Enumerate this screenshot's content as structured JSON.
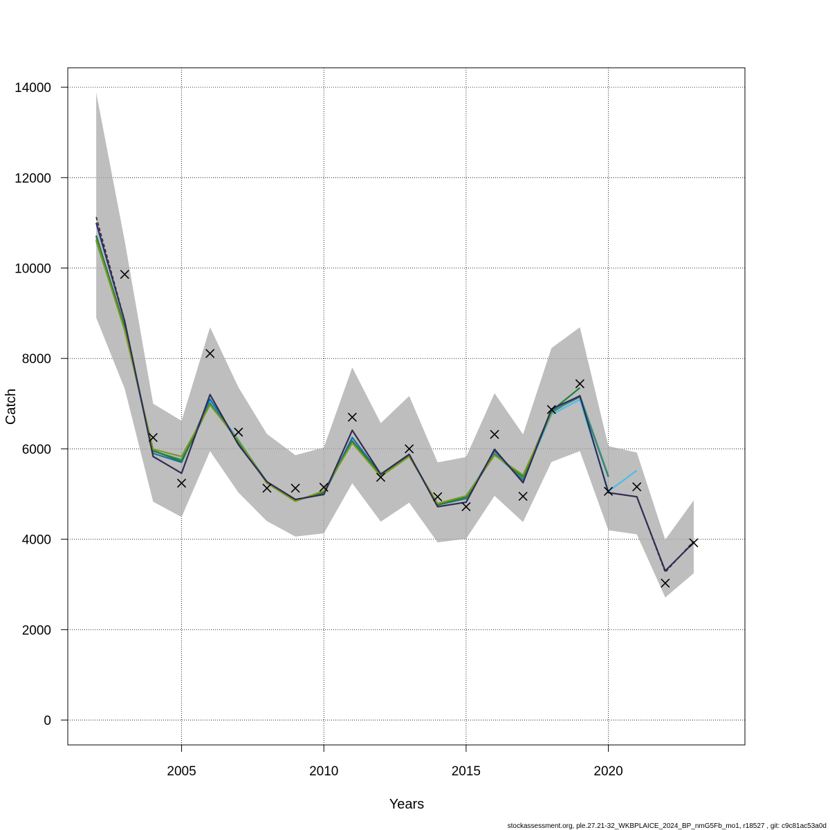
{
  "chart_data": {
    "type": "line",
    "xlabel": "Years",
    "ylabel": "Catch",
    "xlim": [
      2001.0,
      2024.8
    ],
    "ylim": [
      -550,
      14430
    ],
    "x_ticks": [
      2005,
      2010,
      2015,
      2020
    ],
    "y_ticks": [
      0,
      2000,
      4000,
      6000,
      8000,
      10000,
      12000,
      14000
    ],
    "grid": true,
    "confidence_band": {
      "color": "#bebebe",
      "x": [
        2002,
        2003,
        2004,
        2005,
        2006,
        2007,
        2008,
        2009,
        2010,
        2011,
        2012,
        2013,
        2014,
        2015,
        2016,
        2017,
        2018,
        2019,
        2020,
        2021,
        2022,
        2023
      ],
      "upper": [
        13880,
        10600,
        7000,
        6620,
        8690,
        7360,
        6330,
        5860,
        6030,
        7800,
        6570,
        7170,
        5700,
        5820,
        7230,
        6320,
        8230,
        8690,
        6060,
        5920,
        3990,
        4860
      ],
      "lower": [
        8900,
        7330,
        4830,
        4490,
        5950,
        5030,
        4400,
        4060,
        4130,
        5240,
        4390,
        4810,
        3930,
        4010,
        4960,
        4380,
        5710,
        5950,
        4200,
        4110,
        2710,
        3250
      ]
    },
    "observed": {
      "marker": "x",
      "color": "#000000",
      "x": [
        2003,
        2004,
        2005,
        2006,
        2007,
        2008,
        2009,
        2010,
        2011,
        2012,
        2013,
        2014,
        2015,
        2016,
        2017,
        2018,
        2019,
        2020,
        2021,
        2022,
        2023
      ],
      "values": [
        9860,
        6250,
        5240,
        8110,
        6370,
        5130,
        5130,
        5150,
        6700,
        5370,
        6000,
        4940,
        4720,
        6320,
        4950,
        6870,
        7440,
        5060,
        5160,
        3030,
        3920
      ]
    },
    "series": [
      {
        "color": "#48bde8",
        "x": [
          2002,
          2003,
          2004,
          2005,
          2006,
          2007,
          2008,
          2009,
          2010,
          2011,
          2012,
          2013,
          2014,
          2015,
          2016,
          2017,
          2018,
          2019,
          2020,
          2021
        ],
        "values": [
          10650,
          8650,
          5960,
          5720,
          7050,
          6200,
          5250,
          4860,
          5020,
          6180,
          5410,
          5840,
          4780,
          4960,
          5880,
          5320,
          6760,
          7090,
          5060,
          5520
        ]
      },
      {
        "color": "#1d6fa8",
        "x": [
          2002,
          2003,
          2004,
          2005,
          2006,
          2007,
          2008,
          2009,
          2010,
          2011,
          2012,
          2013,
          2014,
          2015,
          2016,
          2017,
          2018,
          2019,
          2020
        ],
        "values": [
          10700,
          8700,
          5900,
          5700,
          7100,
          6150,
          5250,
          4870,
          5000,
          6250,
          5430,
          5860,
          4760,
          4900,
          5950,
          5310,
          6830,
          7150,
          5380
        ]
      },
      {
        "color": "#3a8d72",
        "x": [
          2002,
          2003,
          2004,
          2005,
          2006,
          2007,
          2008,
          2009,
          2010,
          2011,
          2012,
          2013,
          2014,
          2015,
          2016,
          2017,
          2018,
          2019,
          2020
        ],
        "values": [
          10600,
          8650,
          5950,
          5760,
          7000,
          6180,
          5260,
          4860,
          5040,
          6170,
          5420,
          5850,
          4760,
          4920,
          5890,
          5340,
          6800,
          7180,
          5400
        ]
      },
      {
        "color": "#1e7d3c",
        "x": [
          2002,
          2003,
          2004,
          2005,
          2006,
          2007,
          2008,
          2009,
          2010,
          2011,
          2012,
          2013,
          2014,
          2015,
          2016,
          2017,
          2018,
          2019
        ],
        "values": [
          10720,
          8680,
          5960,
          5720,
          7000,
          6160,
          5270,
          4850,
          5040,
          6170,
          5440,
          5860,
          4760,
          4930,
          5870,
          5390,
          6840,
          7350
        ]
      },
      {
        "color": "#7a9a1c",
        "x": [
          2002,
          2003,
          2004,
          2005,
          2006,
          2007,
          2008,
          2009,
          2010,
          2011,
          2012,
          2013,
          2014,
          2015,
          2016,
          2017,
          2018
        ],
        "values": [
          10620,
          8620,
          5990,
          5830,
          6970,
          6180,
          5240,
          4840,
          5070,
          6130,
          5390,
          5830,
          4790,
          4960,
          5860,
          5420,
          6790
        ]
      },
      {
        "color": "#2e2878",
        "x": [
          2002,
          2003,
          2004,
          2005,
          2006,
          2007,
          2008,
          2009,
          2010,
          2011,
          2012,
          2013,
          2014,
          2015,
          2016,
          2017,
          2018,
          2019,
          2020,
          2021,
          2022,
          2023
        ],
        "values": [
          11000,
          8820,
          5830,
          5460,
          7200,
          6090,
          5270,
          4880,
          4990,
          6410,
          5440,
          5880,
          4720,
          4820,
          5990,
          5250,
          6880,
          7170,
          5030,
          4940,
          3300,
          3930
        ]
      },
      {
        "color": "#333333",
        "dashed": true,
        "x": [
          2002,
          2003,
          2004,
          2005,
          2006,
          2007,
          2008,
          2009,
          2010,
          2011,
          2012,
          2013,
          2014,
          2015,
          2016,
          2017,
          2018,
          2019,
          2020,
          2021,
          2022,
          2023
        ],
        "values": [
          11130,
          8830,
          5830,
          5460,
          7200,
          6090,
          5270,
          4880,
          4990,
          6410,
          5440,
          5880,
          4720,
          4820,
          5990,
          5250,
          6880,
          7170,
          5030,
          4940,
          3270,
          3960
        ]
      }
    ]
  },
  "footer": "stockassessment.org, ple.27.21-32_WKBPLAICE_2024_BP_nmG5Fb_mo1, r18527 , git: c9c81ac53a0d"
}
